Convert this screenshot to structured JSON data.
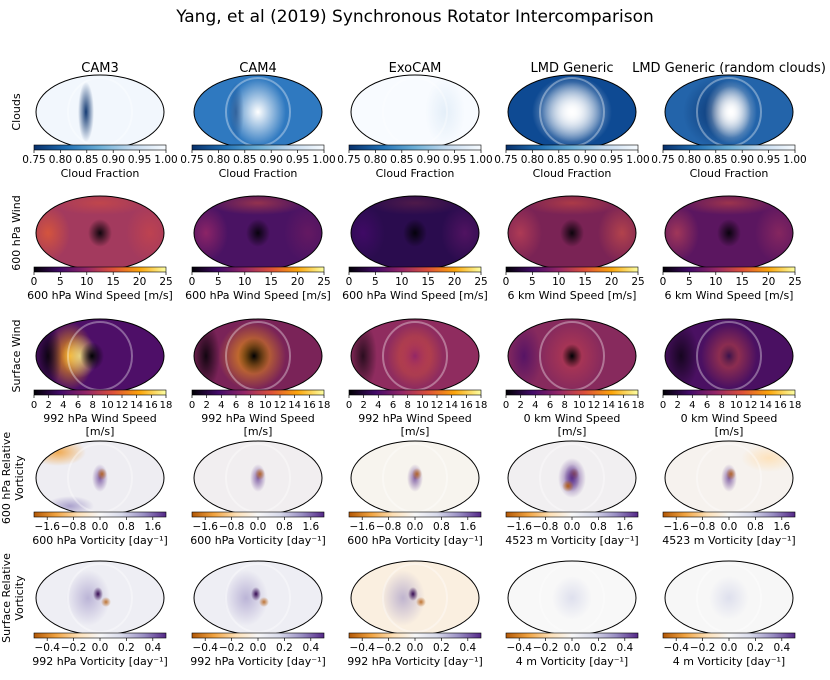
{
  "title": "Yang, et al (2019) Synchronous Rotator Intercomparison",
  "columns": [
    "CAM3",
    "CAM4",
    "ExoCAM",
    "LMD Generic",
    "LMD Generic (random clouds)"
  ],
  "chart_data": {
    "type": "heatmap",
    "projection": "mollweide",
    "rows": [
      {
        "row_label": [
          "Clouds"
        ],
        "colormap": "Blues_r",
        "colormap_stops": [
          "#08306b",
          "#2171b5",
          "#6baed6",
          "#c6dbef",
          "#f7fbff"
        ],
        "range": [
          0.75,
          1.0
        ],
        "ticks": [
          "0.75",
          "0.80",
          "0.85",
          "0.90",
          "0.95",
          "1.00"
        ],
        "tick_values": [
          0.75,
          0.8,
          0.85,
          0.9,
          0.95,
          1.0
        ],
        "labels": [
          "Cloud Fraction",
          "Cloud Fraction",
          "Cloud Fraction",
          "Cloud Fraction",
          "Cloud Fraction"
        ]
      },
      {
        "row_label": [
          "600 hPa Wind"
        ],
        "colormap": "inferno",
        "colormap_stops": [
          "#000004",
          "#420a68",
          "#932667",
          "#dd513a",
          "#fca50a",
          "#fcffa4"
        ],
        "range": [
          0,
          25
        ],
        "ticks": [
          "0",
          "5",
          "10",
          "15",
          "20",
          "25"
        ],
        "tick_values": [
          0,
          5,
          10,
          15,
          20,
          25
        ],
        "labels": [
          "600 hPa Wind Speed [m/s]",
          "600 hPa Wind Speed [m/s]",
          "600 hPa Wind Speed [m/s]",
          "6 km Wind Speed [m/s]",
          "6 km Wind Speed [m/s]"
        ]
      },
      {
        "row_label": [
          "Surface Wind"
        ],
        "colormap": "inferno",
        "colormap_stops": [
          "#000004",
          "#420a68",
          "#932667",
          "#dd513a",
          "#fca50a",
          "#fcffa4"
        ],
        "range": [
          0,
          18
        ],
        "ticks": [
          "0",
          "2",
          "4",
          "6",
          "8",
          "10",
          "12",
          "14",
          "16",
          "18"
        ],
        "tick_values": [
          0,
          2,
          4,
          6,
          8,
          10,
          12,
          14,
          16,
          18
        ],
        "tick_join": true,
        "labels": [
          "992 hPa Wind Speed|[m/s]",
          "992 hPa Wind Speed|[m/s]",
          "992 hPa Wind Speed|[m/s]",
          "0 km Wind Speed|[m/s]",
          "0 km Wind Speed|[m/s]"
        ]
      },
      {
        "row_label": [
          "600 hPa Relative",
          "Vorticity"
        ],
        "colormap": "PuOr",
        "colormap_stops": [
          "#b35806",
          "#f1a340",
          "#fee0b6",
          "#f7f7f7",
          "#d8daeb",
          "#998ec3",
          "#542788"
        ],
        "range": [
          -2.0,
          2.0
        ],
        "ticks": [
          "−1.6",
          "−0.8",
          "0.0",
          "0.8",
          "1.6"
        ],
        "tick_values": [
          -1.6,
          -0.8,
          0.0,
          0.8,
          1.6
        ],
        "labels": [
          "600 hPa Vorticity [day⁻¹]",
          "600 hPa Vorticity [day⁻¹]",
          "600 hPa Vorticity [day⁻¹]",
          "4523 m Vorticity [day⁻¹]",
          "4523 m Vorticity [day⁻¹]"
        ]
      },
      {
        "row_label": [
          "Surface Relative",
          "Vorticity"
        ],
        "colormap": "PuOr",
        "colormap_stops": [
          "#b35806",
          "#f1a340",
          "#fee0b6",
          "#f7f7f7",
          "#d8daeb",
          "#998ec3",
          "#542788"
        ],
        "range": [
          -0.5,
          0.5
        ],
        "ticks": [
          "−0.4",
          "−0.2",
          "0.0",
          "0.2",
          "0.4"
        ],
        "tick_values": [
          -0.4,
          -0.2,
          0.0,
          0.2,
          0.4
        ],
        "labels": [
          "992 hPa Vorticity [day⁻¹]",
          "992 hPa Vorticity [day⁻¹]",
          "992 hPa Vorticity [day⁻¹]",
          "4 m Vorticity [day⁻¹]",
          "4 m Vorticity [day⁻¹]"
        ]
      }
    ]
  }
}
